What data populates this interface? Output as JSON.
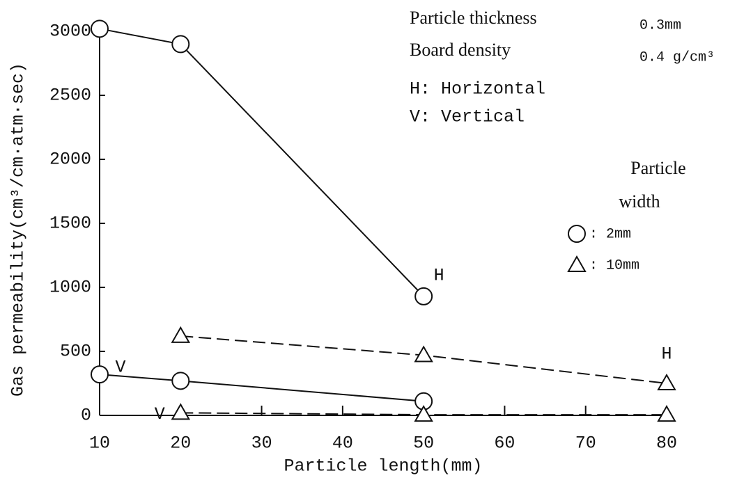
{
  "chart_data": {
    "type": "line",
    "xlabel": "Particle length(mm)",
    "ylabel": "Gas permeability(cm³/cm·atm·sec)",
    "xlim": [
      10,
      80
    ],
    "ylim": [
      0,
      3000
    ],
    "xticks": [
      10,
      20,
      30,
      40,
      50,
      60,
      70,
      80
    ],
    "yticks": [
      0,
      500,
      1000,
      1500,
      2000,
      2500,
      3000
    ],
    "notes": [
      {
        "label": "Particle thickness",
        "value": "0.3mm"
      },
      {
        "label": "Board density",
        "value": "0.4 g/cm³"
      },
      {
        "label": "H: Horizontal"
      },
      {
        "label": "V: Vertical"
      }
    ],
    "legend": {
      "title": [
        "Particle",
        "width"
      ],
      "items": [
        {
          "marker": "circle",
          "label": ":  2mm"
        },
        {
          "marker": "triangle",
          "label": ": 10mm"
        }
      ]
    },
    "series": [
      {
        "label": "H",
        "marker": "circle",
        "dashed": false,
        "color": "#111",
        "x": [
          10,
          20,
          50
        ],
        "values": [
          3020,
          2900,
          930
        ]
      },
      {
        "label": "V",
        "marker": "circle",
        "dashed": false,
        "color": "#111",
        "x": [
          10,
          20,
          50
        ],
        "values": [
          320,
          270,
          110
        ]
      },
      {
        "label": "H",
        "marker": "triangle",
        "dashed": true,
        "color": "#111",
        "x": [
          20,
          50,
          80
        ],
        "values": [
          620,
          470,
          250
        ]
      },
      {
        "label": "V",
        "marker": "triangle",
        "dashed": true,
        "color": "#111",
        "x": [
          20,
          50,
          80
        ],
        "values": [
          20,
          5,
          5
        ]
      }
    ]
  }
}
